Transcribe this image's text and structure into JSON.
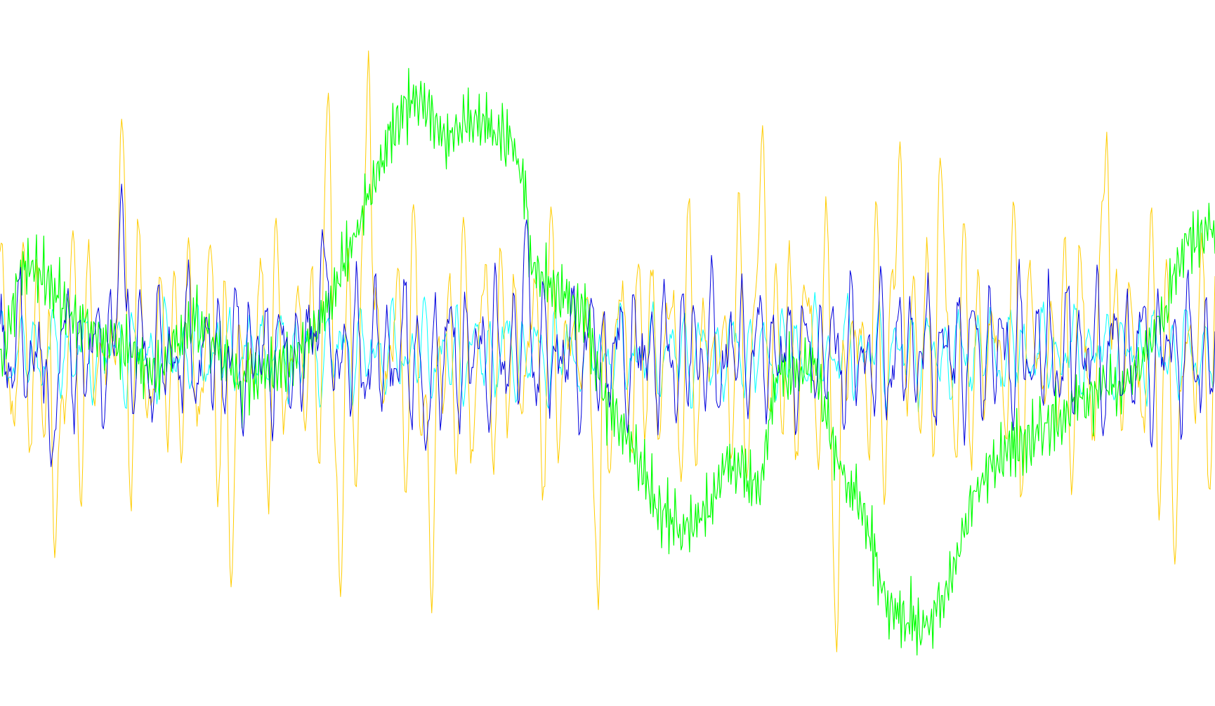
{
  "chart_data": {
    "type": "line",
    "title": "",
    "xlabel": "",
    "ylabel": "",
    "grid": false,
    "legend": "none",
    "xlim": [
      0,
      1000
    ],
    "ylim": [
      -1,
      1
    ],
    "series": [
      {
        "color": "#00ffff",
        "stroke_weight": "thin",
        "generator": {
          "n": 1000,
          "base": 0.0,
          "components": [
            {
              "amp": 0.08,
              "freq": 0.075,
              "phase": 0.3
            },
            {
              "amp": 0.05,
              "freq": 0.112,
              "phase": 1.1
            },
            {
              "amp": 0.04,
              "freq": 0.043,
              "phase": 2.2
            }
          ],
          "noise": 0.03,
          "seed": 11
        }
      },
      {
        "color": "#ffcc00",
        "stroke_weight": "thin",
        "generator": {
          "n": 1000,
          "base": 0.0,
          "components": [
            {
              "amp": 0.22,
              "freq": 0.071,
              "phase": 0.5
            },
            {
              "amp": 0.16,
              "freq": 0.097,
              "phase": 2.0
            },
            {
              "amp": 0.12,
              "freq": 0.053,
              "phase": 0.9
            }
          ],
          "noise": 0.04,
          "seed": 23,
          "peaks": [
            {
              "at": 100,
              "value": 0.72
            },
            {
              "at": 270,
              "value": 0.8
            },
            {
              "at": 303,
              "value": 0.93
            },
            {
              "at": 627,
              "value": 0.7
            },
            {
              "at": 740,
              "value": 0.65
            },
            {
              "at": 773,
              "value": 0.6
            },
            {
              "at": 910,
              "value": 0.68
            },
            {
              "at": 45,
              "value": -0.63
            },
            {
              "at": 190,
              "value": -0.72
            },
            {
              "at": 280,
              "value": -0.75
            },
            {
              "at": 355,
              "value": -0.8
            },
            {
              "at": 492,
              "value": -0.79
            },
            {
              "at": 688,
              "value": -0.92
            },
            {
              "at": 966,
              "value": -0.65
            }
          ]
        }
      },
      {
        "color": "#00ff00",
        "stroke_weight": "thin",
        "generator": {
          "n": 1000,
          "base": 0.0,
          "components": [
            {
              "amp": 0.05,
              "freq": 0.31,
              "phase": 0.4
            },
            {
              "amp": 0.04,
              "freq": 0.47,
              "phase": 1.7
            }
          ],
          "noise": 0.05,
          "seed": 37,
          "trend": [
            [
              0,
              -0.05
            ],
            [
              20,
              0.28
            ],
            [
              40,
              0.22
            ],
            [
              60,
              0.1
            ],
            [
              90,
              0.05
            ],
            [
              130,
              -0.05
            ],
            [
              160,
              0.1
            ],
            [
              200,
              -0.1
            ],
            [
              245,
              0.0
            ],
            [
              270,
              0.15
            ],
            [
              300,
              0.45
            ],
            [
              325,
              0.7
            ],
            [
              345,
              0.78
            ],
            [
              365,
              0.65
            ],
            [
              385,
              0.72
            ],
            [
              410,
              0.68
            ],
            [
              430,
              0.58
            ],
            [
              437,
              0.25
            ],
            [
              460,
              0.18
            ],
            [
              480,
              0.12
            ],
            [
              495,
              -0.12
            ],
            [
              520,
              -0.3
            ],
            [
              545,
              -0.5
            ],
            [
              570,
              -0.55
            ],
            [
              600,
              -0.35
            ],
            [
              625,
              -0.4
            ],
            [
              640,
              -0.05
            ],
            [
              670,
              -0.05
            ],
            [
              690,
              -0.35
            ],
            [
              710,
              -0.5
            ],
            [
              730,
              -0.78
            ],
            [
              760,
              -0.85
            ],
            [
              780,
              -0.72
            ],
            [
              800,
              -0.45
            ],
            [
              820,
              -0.32
            ],
            [
              850,
              -0.25
            ],
            [
              870,
              -0.2
            ],
            [
              900,
              -0.12
            ],
            [
              920,
              -0.1
            ],
            [
              940,
              -0.02
            ],
            [
              960,
              0.15
            ],
            [
              975,
              0.35
            ],
            [
              1000,
              0.38
            ]
          ]
        }
      },
      {
        "color": "#0000dd",
        "stroke_weight": "thin",
        "generator": {
          "n": 1000,
          "base": 0.0,
          "components": [
            {
              "amp": 0.12,
              "freq": 0.079,
              "phase": 0.1
            },
            {
              "amp": 0.09,
              "freq": 0.123,
              "phase": 1.5
            },
            {
              "amp": 0.06,
              "freq": 0.051,
              "phase": 2.6
            }
          ],
          "noise": 0.05,
          "seed": 53,
          "peaks": [
            {
              "at": 100,
              "value": 0.52
            },
            {
              "at": 265,
              "value": 0.38
            },
            {
              "at": 433,
              "value": 0.41
            },
            {
              "at": 42,
              "value": -0.35
            },
            {
              "at": 350,
              "value": -0.3
            }
          ]
        }
      }
    ]
  }
}
